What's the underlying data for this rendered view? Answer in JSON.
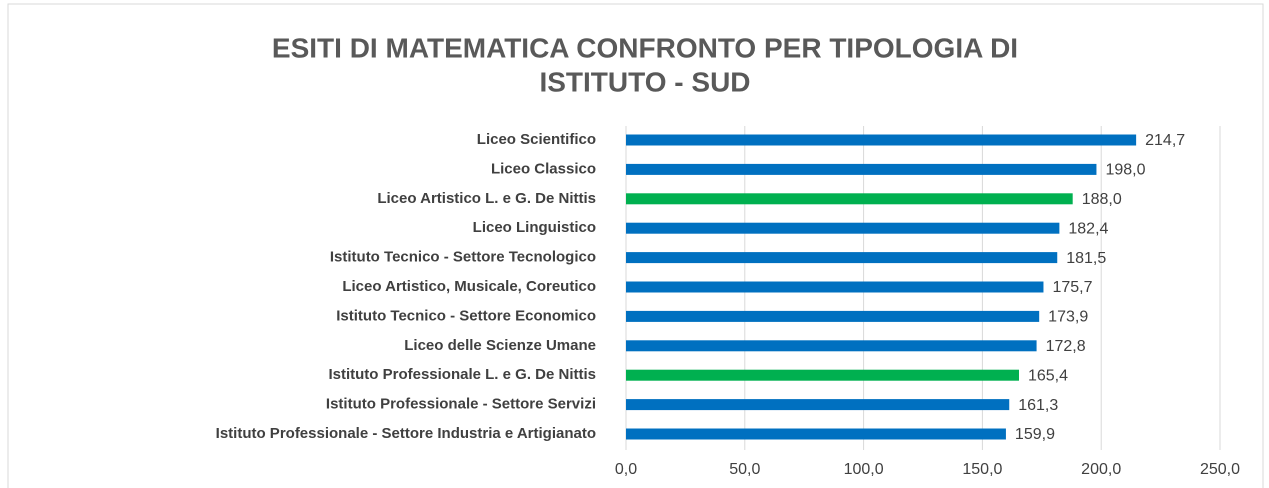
{
  "chart_data": {
    "type": "barh",
    "title": [
      "ESITI DI MATEMATICA CONFRONTO PER TIPOLOGIA DI",
      "ISTITUTO - SUD"
    ],
    "categories": [
      "Liceo Scientifico",
      "Liceo Classico",
      "Liceo Artistico L. e G. De Nittis",
      "Liceo Linguistico",
      "Istituto Tecnico - Settore Tecnologico",
      "Liceo Artistico, Musicale, Coreutico",
      "Istituto Tecnico - Settore Economico",
      "Liceo delle Scienze Umane",
      "Istituto Professionale L. e G. De Nittis",
      "Istituto Professionale - Settore Servizi",
      "Istituto Professionale - Settore Industria e Artigianato"
    ],
    "values": [
      214.7,
      198.0,
      188.0,
      182.4,
      181.5,
      175.7,
      173.9,
      172.8,
      165.4,
      161.3,
      159.9
    ],
    "value_labels": [
      "214,7",
      "198,0",
      "188,0",
      "182,4",
      "181,5",
      "175,7",
      "173,9",
      "172,8",
      "165,4",
      "161,3",
      "159,9"
    ],
    "colors": [
      "#0070c0",
      "#0070c0",
      "#00b050",
      "#0070c0",
      "#0070c0",
      "#0070c0",
      "#0070c0",
      "#0070c0",
      "#00b050",
      "#0070c0",
      "#0070c0"
    ],
    "xlim": [
      0,
      250
    ],
    "xticks": [
      {
        "value": 0,
        "label": "0,0"
      },
      {
        "value": 50,
        "label": "50,0"
      },
      {
        "value": 100,
        "label": "100,0"
      },
      {
        "value": 150,
        "label": "150,0"
      },
      {
        "value": 200,
        "label": "200,0"
      },
      {
        "value": 250,
        "label": "250,0"
      }
    ],
    "grid": true
  }
}
